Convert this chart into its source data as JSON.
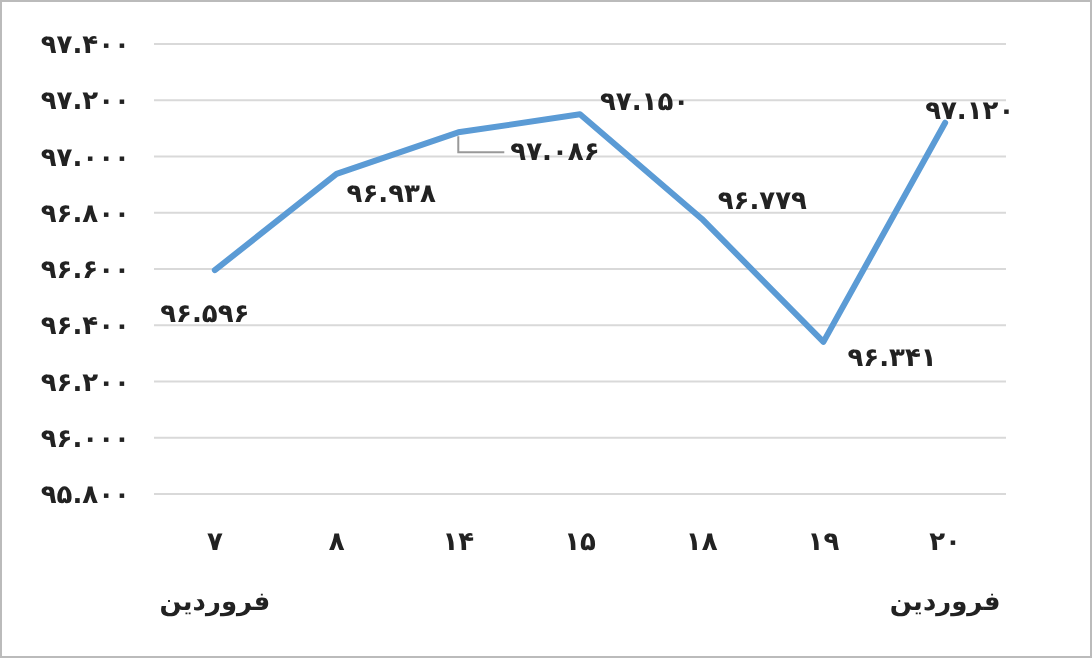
{
  "chart_data": {
    "type": "line",
    "categories": [
      "۷\nفروردین",
      "۸",
      "۱۴",
      "۱۵",
      "۱۸",
      "۱۹",
      "۲۰\nفروردین"
    ],
    "series": [
      {
        "color": "#5b9bd5",
        "values": [
          96.596,
          96.938,
          97.086,
          97.15,
          96.779,
          96.341,
          97.12
        ],
        "value_labels": [
          "۹۶.۵۹۶",
          "۹۶.۹۳۸",
          "۹۷.۰۸۶",
          "۹۷.۱۵۰",
          "۹۶.۷۷۹",
          "۹۶.۳۴۱",
          "۹۷.۱۲۰"
        ]
      }
    ],
    "ylim": [
      95.8,
      97.4
    ],
    "yticks": [
      {
        "value": 95.8,
        "label": "۹۵.۸۰۰"
      },
      {
        "value": 96,
        "label": "۹۶.۰۰۰"
      },
      {
        "value": 96.2,
        "label": "۹۶.۲۰۰"
      },
      {
        "value": 96.4,
        "label": "۹۶.۴۰۰"
      },
      {
        "value": 96.6,
        "label": "۹۶.۶۰۰"
      },
      {
        "value": 96.8,
        "label": "۹۶.۸۰۰"
      },
      {
        "value": 97,
        "label": "۹۷.۰۰۰"
      },
      {
        "value": 97.2,
        "label": "۹۷.۲۰۰"
      },
      {
        "value": 97.4,
        "label": "۹۷.۴۰۰"
      }
    ],
    "grid": "y",
    "marker": "none",
    "line_style": "solid"
  }
}
